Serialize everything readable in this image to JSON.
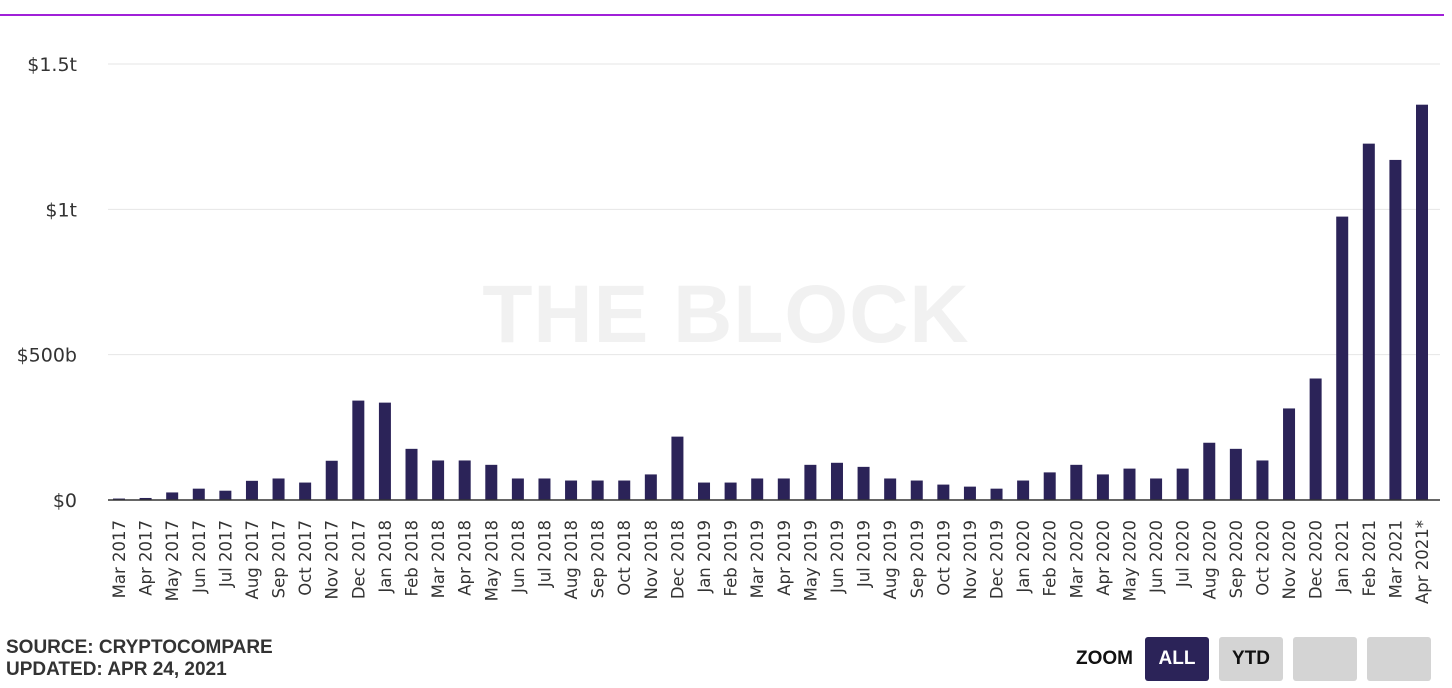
{
  "watermark": "THE BLOCK",
  "footer": {
    "source": "SOURCE: CRYPTOCOMPARE",
    "updated": "UPDATED: APR 24, 2021"
  },
  "zoom": {
    "label": "ZOOM",
    "buttons": [
      {
        "label": "ALL",
        "active": true
      },
      {
        "label": "YTD",
        "active": false
      },
      {
        "label": "",
        "active": false
      },
      {
        "label": "",
        "active": false
      }
    ]
  },
  "colors": {
    "bar": "#2b2358",
    "accent_rule": "#a020d8",
    "grid": "#e6e6e6",
    "axis": "#333333"
  },
  "chart_data": {
    "type": "bar",
    "title": "",
    "xlabel": "",
    "ylabel": "",
    "ylim": [
      0,
      1500
    ],
    "value_unit": "billions USD",
    "grid": true,
    "y_ticks": [
      {
        "value": 0,
        "label": "$0"
      },
      {
        "value": 500,
        "label": "$500b"
      },
      {
        "value": 1000,
        "label": "$1t"
      },
      {
        "value": 1500,
        "label": "$1.5t"
      }
    ],
    "categories": [
      "Mar 2017",
      "Apr 2017",
      "May 2017",
      "Jun 2017",
      "Jul 2017",
      "Aug 2017",
      "Sep 2017",
      "Oct 2017",
      "Nov 2017",
      "Dec 2017",
      "Jan 2018",
      "Feb 2018",
      "Mar 2018",
      "Apr 2018",
      "May 2018",
      "Jun 2018",
      "Jul 2018",
      "Aug 2018",
      "Sep 2018",
      "Oct 2018",
      "Nov 2018",
      "Dec 2018",
      "Jan 2019",
      "Feb 2019",
      "Mar 2019",
      "Apr 2019",
      "May 2019",
      "Jun 2019",
      "Jul 2019",
      "Aug 2019",
      "Sep 2019",
      "Oct 2019",
      "Nov 2019",
      "Dec 2019",
      "Jan 2020",
      "Feb 2020",
      "Mar 2020",
      "Apr 2020",
      "May 2020",
      "Jun 2020",
      "Jul 2020",
      "Aug 2020",
      "Sep 2020",
      "Oct 2020",
      "Nov 2020",
      "Dec 2020",
      "Jan 2021",
      "Feb 2021",
      "Mar 2021",
      "Apr 2021*"
    ],
    "values": [
      5,
      7,
      26,
      39,
      32,
      66,
      74,
      60,
      135,
      342,
      335,
      176,
      136,
      136,
      121,
      74,
      74,
      67,
      67,
      67,
      88,
      218,
      60,
      60,
      74,
      74,
      121,
      128,
      114,
      74,
      67,
      53,
      46,
      39,
      67,
      95,
      121,
      88,
      108,
      74,
      108,
      197,
      176,
      136,
      315,
      418,
      975,
      1226,
      1170,
      1360
    ]
  }
}
